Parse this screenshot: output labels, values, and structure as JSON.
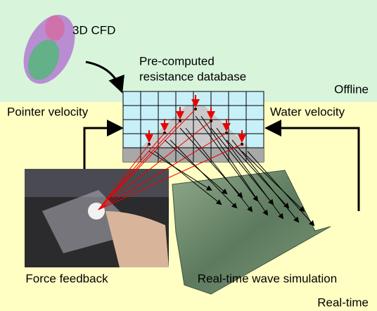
{
  "labels": {
    "cfd": "3D CFD",
    "database": [
      "Pre-computed",
      "resistance database"
    ],
    "offline": "Offline",
    "pointer_velocity": "Pointer velocity",
    "water_velocity": "Water velocity",
    "force_feedback": "Force feedback",
    "wave_simulation": "Real-time wave simulation",
    "realtime": "Real-time"
  }
}
